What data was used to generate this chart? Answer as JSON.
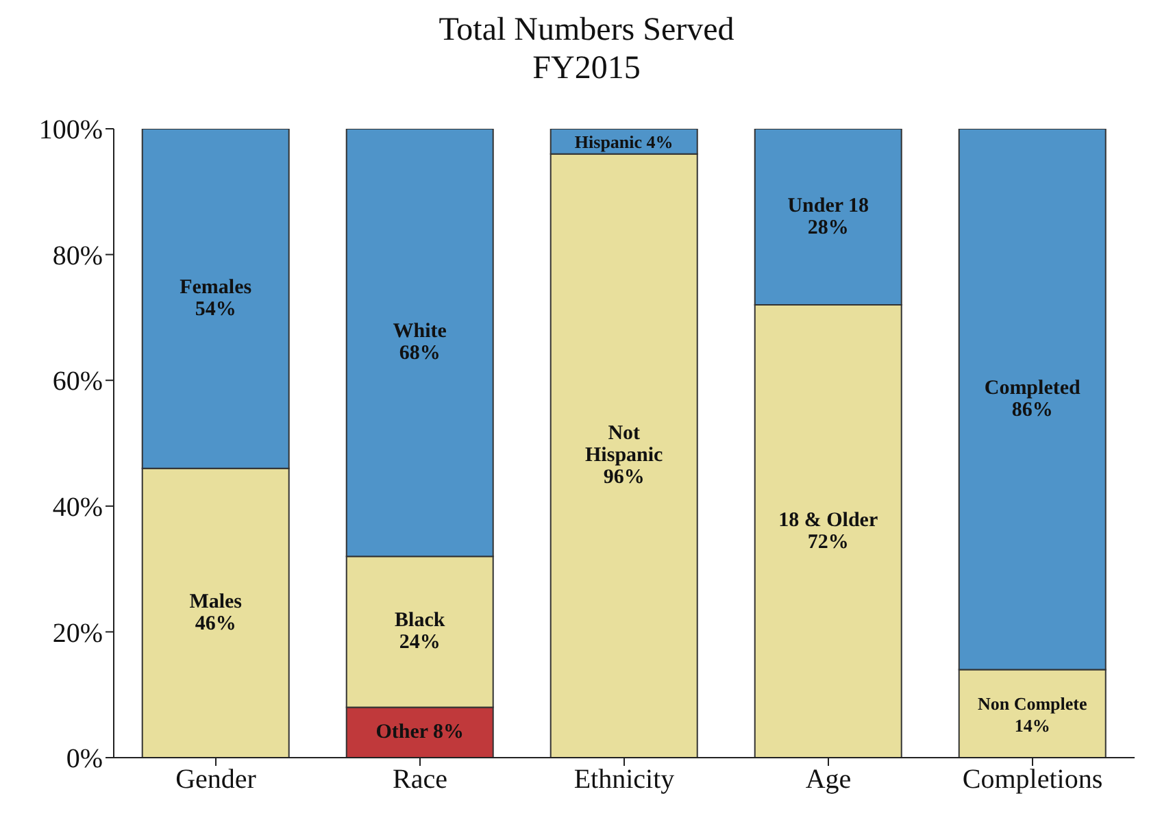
{
  "chart_data": {
    "type": "bar",
    "title": "Total Numbers Served",
    "subtitle": "FY2015",
    "categories": [
      "Gender",
      "Race",
      "Ethnicity",
      "Age",
      "Completions"
    ],
    "stacked": true,
    "series": [
      {
        "color": "#c0393b",
        "values": [
          null,
          8,
          null,
          null,
          null
        ],
        "value_labels": [
          null,
          "Other 8%",
          null,
          null,
          null
        ]
      },
      {
        "color": "#e8df9c",
        "values": [
          46,
          24,
          96,
          72,
          14
        ],
        "value_labels": [
          "Males\n46%",
          "Black\n24%",
          "Not\nHispanic\n96%",
          "18 & Older\n72%",
          "Non Complete\n14%"
        ]
      },
      {
        "color": "#4f94c9",
        "values": [
          54,
          68,
          4,
          28,
          86
        ],
        "value_labels": [
          "Females\n54%",
          "White\n68%",
          "Hispanic 4%",
          "Under 18\n28%",
          "Completed\n86%"
        ]
      }
    ],
    "ylim": [
      0,
      100
    ],
    "yticks": [
      {
        "value": 0,
        "label": "0%"
      },
      {
        "value": 20,
        "label": "20%"
      },
      {
        "value": 40,
        "label": "40%"
      },
      {
        "value": 60,
        "label": "60%"
      },
      {
        "value": 80,
        "label": "80%"
      },
      {
        "value": 100,
        "label": "100%"
      }
    ],
    "grid": false,
    "legend": false
  }
}
